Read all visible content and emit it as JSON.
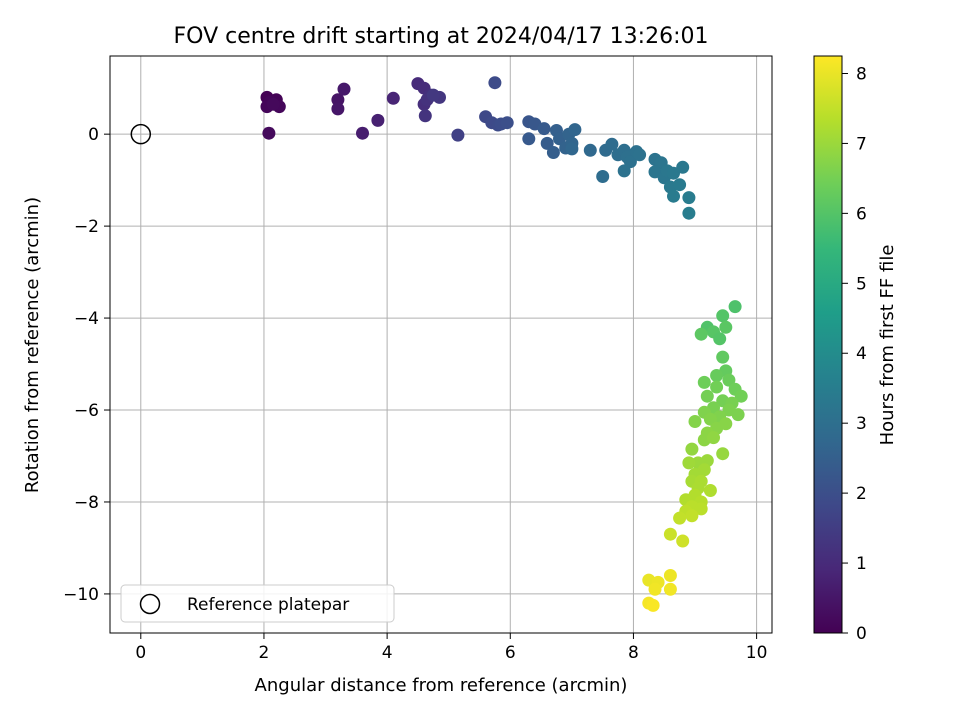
{
  "chart_data": {
    "type": "scatter",
    "title": "FOV centre drift starting at 2024/04/17 13:26:01",
    "xlabel": "Angular distance from reference (arcmin)",
    "ylabel": "Rotation from reference (arcmin)",
    "xlim": [
      -0.5,
      10.25
    ],
    "ylim": [
      -10.85,
      1.7
    ],
    "x_ticks": [
      0,
      2,
      4,
      6,
      8,
      10
    ],
    "y_ticks": [
      0,
      -2,
      -4,
      -6,
      -8,
      -10
    ],
    "grid": true,
    "legend": {
      "placement": "lower-left",
      "entries": [
        "Reference platepar"
      ]
    },
    "reference_point": {
      "x": 0,
      "y": 0
    },
    "colorbar": {
      "label": "Hours from first FF file",
      "range": [
        0,
        8.25
      ],
      "ticks": [
        0,
        1,
        2,
        3,
        4,
        5,
        6,
        7,
        8
      ],
      "colormap": "viridis"
    },
    "colormap_colors": [
      "#440154",
      "#482878",
      "#3e4989",
      "#31688e",
      "#26828e",
      "#1f9e89",
      "#35b779",
      "#6ece58",
      "#b5de2b",
      "#fde725"
    ],
    "points": [
      {
        "x": 2.05,
        "y": 0.8,
        "t": 0.0
      },
      {
        "x": 2.2,
        "y": 0.75,
        "t": 0.05
      },
      {
        "x": 2.1,
        "y": 0.7,
        "t": 0.1
      },
      {
        "x": 2.05,
        "y": 0.6,
        "t": 0.12
      },
      {
        "x": 2.25,
        "y": 0.6,
        "t": 0.15
      },
      {
        "x": 2.15,
        "y": 0.65,
        "t": 0.18
      },
      {
        "x": 2.08,
        "y": 0.02,
        "t": 0.2
      },
      {
        "x": 3.2,
        "y": 0.75,
        "t": 0.45
      },
      {
        "x": 3.2,
        "y": 0.55,
        "t": 0.5
      },
      {
        "x": 3.3,
        "y": 0.98,
        "t": 0.55
      },
      {
        "x": 3.6,
        "y": 0.02,
        "t": 0.65
      },
      {
        "x": 3.85,
        "y": 0.3,
        "t": 0.75
      },
      {
        "x": 4.1,
        "y": 0.78,
        "t": 0.85
      },
      {
        "x": 4.5,
        "y": 1.1,
        "t": 1.0
      },
      {
        "x": 4.6,
        "y": 1.0,
        "t": 1.05
      },
      {
        "x": 4.6,
        "y": 0.65,
        "t": 1.1
      },
      {
        "x": 4.7,
        "y": 0.85,
        "t": 1.15
      },
      {
        "x": 4.65,
        "y": 0.75,
        "t": 1.2
      },
      {
        "x": 4.62,
        "y": 0.4,
        "t": 1.25
      },
      {
        "x": 4.85,
        "y": 0.8,
        "t": 1.3
      },
      {
        "x": 4.75,
        "y": 0.85,
        "t": 1.35
      },
      {
        "x": 5.15,
        "y": -0.02,
        "t": 1.6
      },
      {
        "x": 5.6,
        "y": 0.38,
        "t": 1.8
      },
      {
        "x": 5.7,
        "y": 0.25,
        "t": 1.85
      },
      {
        "x": 5.75,
        "y": 1.12,
        "t": 1.88
      },
      {
        "x": 5.8,
        "y": 0.2,
        "t": 1.9
      },
      {
        "x": 5.85,
        "y": 0.22,
        "t": 1.95
      },
      {
        "x": 5.95,
        "y": 0.25,
        "t": 2.0
      },
      {
        "x": 6.3,
        "y": 0.27,
        "t": 2.2
      },
      {
        "x": 6.4,
        "y": 0.22,
        "t": 2.25
      },
      {
        "x": 6.3,
        "y": -0.1,
        "t": 2.3
      },
      {
        "x": 6.55,
        "y": 0.12,
        "t": 2.35
      },
      {
        "x": 6.6,
        "y": -0.2,
        "t": 2.4
      },
      {
        "x": 6.7,
        "y": -0.4,
        "t": 2.45
      },
      {
        "x": 6.75,
        "y": 0.08,
        "t": 2.5
      },
      {
        "x": 6.8,
        "y": -0.1,
        "t": 2.55
      },
      {
        "x": 6.9,
        "y": -0.3,
        "t": 2.6
      },
      {
        "x": 6.95,
        "y": 0.0,
        "t": 2.62
      },
      {
        "x": 7.0,
        "y": -0.2,
        "t": 2.65
      },
      {
        "x": 7.05,
        "y": 0.1,
        "t": 2.7
      },
      {
        "x": 7.0,
        "y": -0.32,
        "t": 2.72
      },
      {
        "x": 7.3,
        "y": -0.35,
        "t": 2.8
      },
      {
        "x": 7.55,
        "y": -0.35,
        "t": 2.85
      },
      {
        "x": 7.65,
        "y": -0.22,
        "t": 2.9
      },
      {
        "x": 7.5,
        "y": -0.92,
        "t": 2.92
      },
      {
        "x": 7.75,
        "y": -0.45,
        "t": 2.95
      },
      {
        "x": 7.85,
        "y": -0.35,
        "t": 3.0
      },
      {
        "x": 7.9,
        "y": -0.5,
        "t": 3.02
      },
      {
        "x": 7.95,
        "y": -0.6,
        "t": 3.05
      },
      {
        "x": 8.05,
        "y": -0.38,
        "t": 3.08
      },
      {
        "x": 8.1,
        "y": -0.45,
        "t": 3.1
      },
      {
        "x": 7.85,
        "y": -0.8,
        "t": 3.12
      },
      {
        "x": 8.35,
        "y": -0.55,
        "t": 3.15
      },
      {
        "x": 8.45,
        "y": -0.62,
        "t": 3.2
      },
      {
        "x": 8.35,
        "y": -0.82,
        "t": 3.22
      },
      {
        "x": 8.5,
        "y": -0.95,
        "t": 3.25
      },
      {
        "x": 8.55,
        "y": -0.8,
        "t": 3.28
      },
      {
        "x": 8.65,
        "y": -0.85,
        "t": 3.3
      },
      {
        "x": 8.8,
        "y": -0.72,
        "t": 3.32
      },
      {
        "x": 8.6,
        "y": -1.15,
        "t": 3.35
      },
      {
        "x": 8.75,
        "y": -1.1,
        "t": 3.4
      },
      {
        "x": 8.65,
        "y": -1.35,
        "t": 3.42
      },
      {
        "x": 8.9,
        "y": -1.38,
        "t": 3.45
      },
      {
        "x": 8.9,
        "y": -1.72,
        "t": 3.48
      },
      {
        "x": 9.65,
        "y": -3.75,
        "t": 5.9
      },
      {
        "x": 9.45,
        "y": -3.95,
        "t": 6.0
      },
      {
        "x": 9.2,
        "y": -4.2,
        "t": 5.95
      },
      {
        "x": 9.3,
        "y": -4.3,
        "t": 6.05
      },
      {
        "x": 9.5,
        "y": -4.2,
        "t": 6.1
      },
      {
        "x": 9.1,
        "y": -4.35,
        "t": 6.15
      },
      {
        "x": 9.4,
        "y": -4.45,
        "t": 6.0
      },
      {
        "x": 9.45,
        "y": -4.85,
        "t": 6.2
      },
      {
        "x": 9.5,
        "y": -5.15,
        "t": 6.25
      },
      {
        "x": 9.35,
        "y": -5.25,
        "t": 6.3
      },
      {
        "x": 9.55,
        "y": -5.35,
        "t": 6.35
      },
      {
        "x": 9.15,
        "y": -5.4,
        "t": 6.4
      },
      {
        "x": 9.65,
        "y": -5.55,
        "t": 6.4
      },
      {
        "x": 9.75,
        "y": -5.7,
        "t": 6.45
      },
      {
        "x": 9.35,
        "y": -5.5,
        "t": 6.45
      },
      {
        "x": 9.2,
        "y": -5.7,
        "t": 6.5
      },
      {
        "x": 9.45,
        "y": -5.8,
        "t": 6.5
      },
      {
        "x": 9.6,
        "y": -5.85,
        "t": 6.55
      },
      {
        "x": 9.3,
        "y": -5.95,
        "t": 6.55
      },
      {
        "x": 9.55,
        "y": -6.0,
        "t": 6.6
      },
      {
        "x": 9.7,
        "y": -6.1,
        "t": 6.6
      },
      {
        "x": 9.15,
        "y": -6.05,
        "t": 6.65
      },
      {
        "x": 9.4,
        "y": -6.15,
        "t": 6.65
      },
      {
        "x": 9.25,
        "y": -6.2,
        "t": 6.7
      },
      {
        "x": 9.0,
        "y": -6.25,
        "t": 6.7
      },
      {
        "x": 9.5,
        "y": -6.3,
        "t": 6.75
      },
      {
        "x": 9.35,
        "y": -6.4,
        "t": 6.75
      },
      {
        "x": 9.2,
        "y": -6.5,
        "t": 6.8
      },
      {
        "x": 9.15,
        "y": -6.65,
        "t": 6.8
      },
      {
        "x": 9.3,
        "y": -6.6,
        "t": 6.85
      },
      {
        "x": 8.95,
        "y": -6.85,
        "t": 6.9
      },
      {
        "x": 9.45,
        "y": -6.95,
        "t": 6.95
      },
      {
        "x": 9.2,
        "y": -7.1,
        "t": 7.0
      },
      {
        "x": 9.05,
        "y": -7.15,
        "t": 7.0
      },
      {
        "x": 8.9,
        "y": -7.15,
        "t": 7.05
      },
      {
        "x": 9.15,
        "y": -7.3,
        "t": 7.1
      },
      {
        "x": 9.0,
        "y": -7.4,
        "t": 7.1
      },
      {
        "x": 8.95,
        "y": -7.55,
        "t": 7.15
      },
      {
        "x": 9.1,
        "y": -7.55,
        "t": 7.2
      },
      {
        "x": 9.05,
        "y": -7.7,
        "t": 7.2
      },
      {
        "x": 9.25,
        "y": -7.75,
        "t": 7.25
      },
      {
        "x": 9.0,
        "y": -7.85,
        "t": 7.3
      },
      {
        "x": 8.85,
        "y": -7.95,
        "t": 7.3
      },
      {
        "x": 9.1,
        "y": -8.0,
        "t": 7.35
      },
      {
        "x": 8.95,
        "y": -8.1,
        "t": 7.4
      },
      {
        "x": 9.1,
        "y": -8.15,
        "t": 7.4
      },
      {
        "x": 8.85,
        "y": -8.2,
        "t": 7.45
      },
      {
        "x": 8.95,
        "y": -8.3,
        "t": 7.5
      },
      {
        "x": 8.75,
        "y": -8.35,
        "t": 7.5
      },
      {
        "x": 8.6,
        "y": -8.7,
        "t": 7.6
      },
      {
        "x": 8.8,
        "y": -8.85,
        "t": 7.65
      },
      {
        "x": 8.25,
        "y": -9.7,
        "t": 8.0
      },
      {
        "x": 8.4,
        "y": -9.75,
        "t": 8.05
      },
      {
        "x": 8.6,
        "y": -9.6,
        "t": 8.05
      },
      {
        "x": 8.35,
        "y": -9.9,
        "t": 8.1
      },
      {
        "x": 8.6,
        "y": -9.9,
        "t": 8.1
      },
      {
        "x": 8.25,
        "y": -10.2,
        "t": 8.15
      },
      {
        "x": 8.32,
        "y": -10.25,
        "t": 8.2
      }
    ]
  }
}
